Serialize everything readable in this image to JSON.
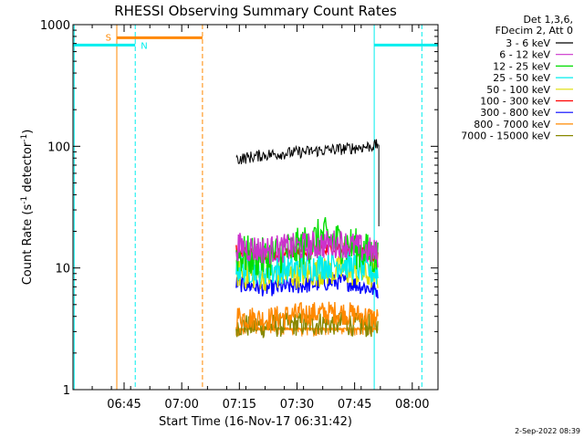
{
  "chart_data": {
    "type": "line",
    "title": "RHESSI Observing Summary Count Rates",
    "xlabel": "Start Time (16-Nov-17 06:31:42)",
    "ylabel_main": "Count Rate (s",
    "ylabel_sup1": "-1",
    "ylabel_mid": " detector",
    "ylabel_sup2": "-1",
    "ylabel_end": ")",
    "yscale": "log",
    "xlim_minutes": [
      0,
      95
    ],
    "ylim": [
      1,
      1000
    ],
    "x_ticks": [
      {
        "label": "06:45",
        "min": 13.3
      },
      {
        "label": "07:00",
        "min": 28.3
      },
      {
        "label": "07:15",
        "min": 43.3
      },
      {
        "label": "07:30",
        "min": 58.3
      },
      {
        "label": "07:45",
        "min": 73.3
      },
      {
        "label": "08:00",
        "min": 88.3
      }
    ],
    "y_ticks": [
      {
        "label": "1",
        "value": 1
      },
      {
        "label": "10",
        "value": 10
      },
      {
        "label": "100",
        "value": 100
      },
      {
        "label": "1000",
        "value": 1000
      }
    ],
    "legend": {
      "header": [
        "Det 1,3,6,",
        "FDecim 2, Att 0"
      ],
      "position": "right",
      "entries": [
        {
          "label": "3 - 6 keV",
          "color": "#000000"
        },
        {
          "label": "6 - 12 keV",
          "color": "#cc33cc"
        },
        {
          "label": "12 - 25 keV",
          "color": "#00dd00"
        },
        {
          "label": "25 - 50 keV",
          "color": "#00eeee"
        },
        {
          "label": "50 - 100 keV",
          "color": "#dddd00"
        },
        {
          "label": "100 - 300 keV",
          "color": "#ff0000"
        },
        {
          "label": "300 - 800 keV",
          "color": "#0000ff"
        },
        {
          "label": "800 - 7000 keV",
          "color": "#ff8800"
        },
        {
          "label": "7000 - 15000 keV",
          "color": "#888800"
        }
      ]
    },
    "series": [
      {
        "name": "3 - 6 keV",
        "color": "#000000",
        "x_min": [
          42.5,
          50,
          60,
          70,
          77.5,
          79.5
        ],
        "y": [
          78,
          85,
          90,
          95,
          100,
          103
        ],
        "noise": 0.05
      },
      {
        "name": "6 - 12 keV",
        "color": "#cc33cc",
        "x_min": [
          42.5,
          50,
          60,
          70,
          79.5
        ],
        "y": [
          15,
          14,
          15,
          16,
          13
        ],
        "noise": 0.12
      },
      {
        "name": "12 - 25 keV",
        "color": "#00dd00",
        "x_min": [
          42.5,
          50,
          60,
          65,
          70,
          79.5
        ],
        "y": [
          13,
          12,
          15,
          18,
          16,
          12
        ],
        "noise": 0.17
      },
      {
        "name": "25 - 50 keV",
        "color": "#00eeee",
        "x_min": [
          42.5,
          50,
          60,
          70,
          79.5
        ],
        "y": [
          10,
          9.5,
          10,
          11,
          9
        ],
        "noise": 0.12
      },
      {
        "name": "50 - 100 keV",
        "color": "#dddd00",
        "x_min": [
          42.5,
          50,
          60,
          70,
          79.5
        ],
        "y": [
          9,
          8.5,
          9,
          9.5,
          8.5
        ],
        "noise": 0.12
      },
      {
        "name": "100 - 300 keV",
        "color": "#ff0000",
        "x_min": [
          42.5,
          50,
          60,
          70,
          79.5
        ],
        "y": [
          14,
          12.5,
          14,
          15,
          12
        ],
        "noise": 0.05
      },
      {
        "name": "300 - 800 keV",
        "color": "#0000ff",
        "x_min": [
          42.5,
          50,
          60,
          70,
          79.5
        ],
        "y": [
          7.5,
          6.8,
          7.2,
          7.8,
          6.5
        ],
        "noise": 0.07
      },
      {
        "name": "800 - 7000 keV",
        "color": "#ff8800",
        "x_min": [
          42.5,
          50,
          60,
          70,
          79.5
        ],
        "y": [
          4,
          3.8,
          4.2,
          4.3,
          3.8
        ],
        "noise": 0.1
      },
      {
        "name": "7000 - 15000 keV",
        "color": "#888800",
        "x_min": [
          42.5,
          50,
          60,
          70,
          79.5
        ],
        "y": [
          3.4,
          3.3,
          3.5,
          3.5,
          3.3
        ],
        "noise": 0.1
      }
    ],
    "low_band": {
      "color": "#ff8800",
      "x_min": [
        42.5,
        79.5
      ],
      "y_low": 2,
      "y_high": 3.2
    },
    "drop_line": {
      "x_min": 79.6,
      "y_from": 103,
      "y_to": 22
    },
    "saa_intervals": [
      {
        "x_start": 0,
        "x_end": 16.2,
        "y": 680,
        "color": "#00eeee"
      },
      {
        "x_start": 78.4,
        "x_end": 95,
        "y": 680,
        "color": "#00eeee"
      }
    ],
    "night_marker": {
      "label": "N",
      "x": 16.2,
      "color": "#00eeee"
    },
    "saa_marker": {
      "label": "S",
      "x": 11.4,
      "x_end": 33.7,
      "y": 780,
      "color": "#ff8800"
    },
    "vlines": [
      {
        "x": 0.3,
        "color": "#00eeee",
        "dash": false
      },
      {
        "x": 11.4,
        "color": "#ff8800",
        "dash": false
      },
      {
        "x": 16.2,
        "color": "#00eeee",
        "dash": true
      },
      {
        "x": 33.7,
        "color": "#ff8800",
        "dash": true
      },
      {
        "x": 78.4,
        "color": "#00eeee",
        "dash": false
      },
      {
        "x": 90.8,
        "color": "#00eeee",
        "dash": true
      }
    ]
  },
  "footer": {
    "date": "2-Sep-2022 08:39"
  }
}
